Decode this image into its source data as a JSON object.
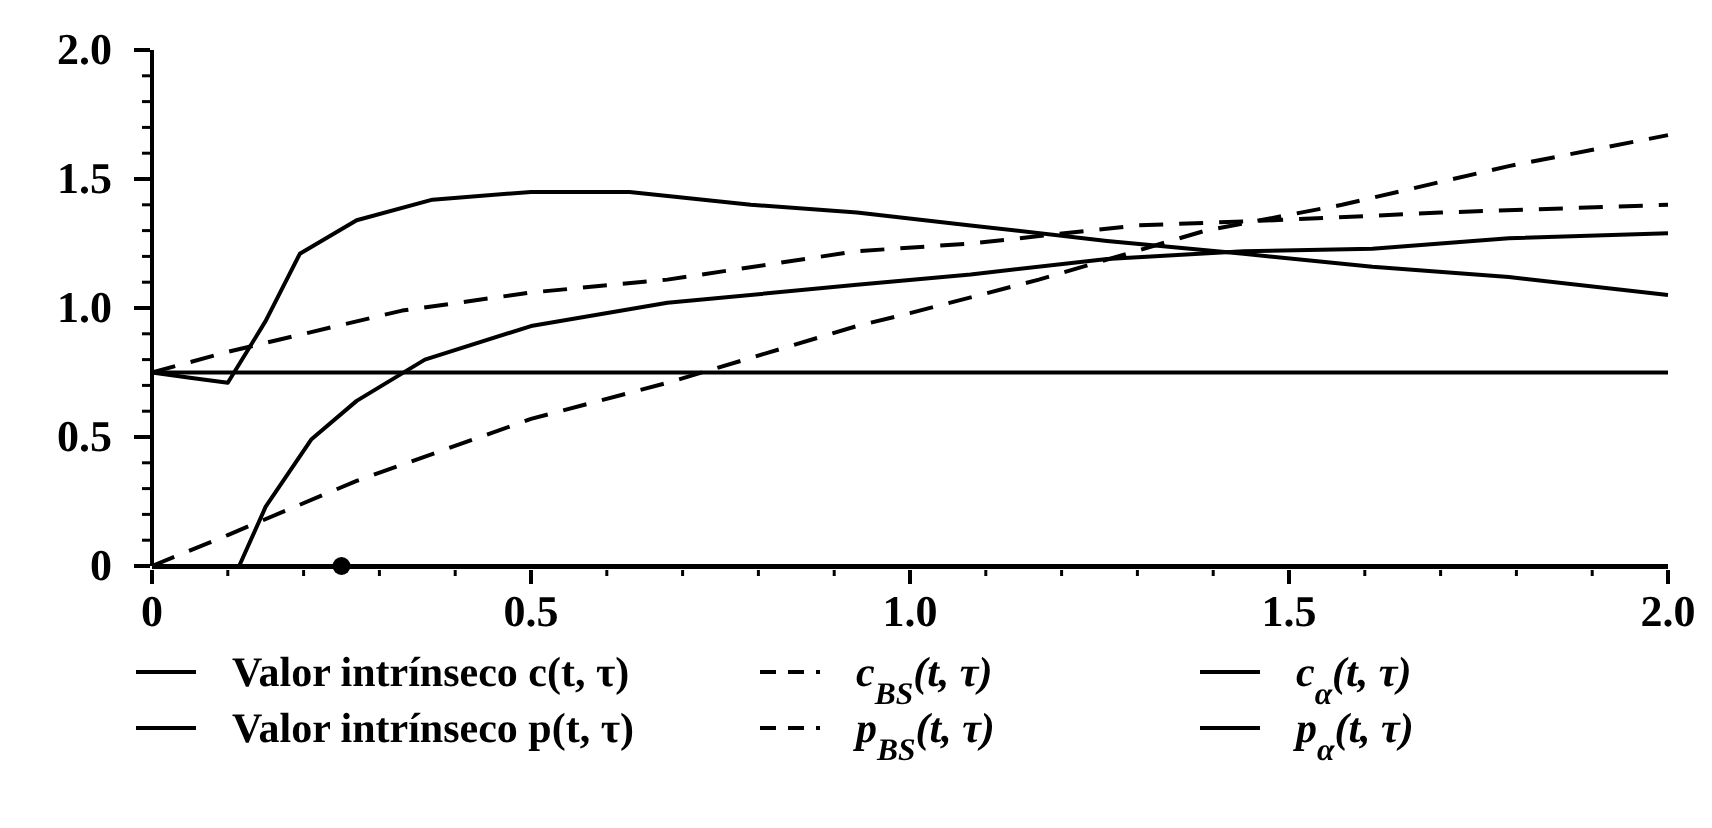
{
  "chart_data": {
    "type": "line",
    "xlim": [
      0,
      2
    ],
    "ylim": [
      0,
      2
    ],
    "xticks": [
      0,
      {
        "value": 0.1,
        "label": null
      },
      {
        "value": 0.2,
        "label": null
      },
      {
        "value": 0.3,
        "label": null
      },
      {
        "value": 0.4,
        "label": null
      },
      0.5,
      {
        "value": 0.6,
        "label": null
      },
      {
        "value": 0.7,
        "label": null
      },
      {
        "value": 0.8,
        "label": null
      },
      {
        "value": 0.9,
        "label": null
      },
      {
        "value": 1,
        "label": "1.0"
      },
      {
        "value": 1.1,
        "label": null
      },
      {
        "value": 1.2,
        "label": null
      },
      {
        "value": 1.3,
        "label": null
      },
      {
        "value": 1.4,
        "label": null
      },
      1.5,
      {
        "value": 1.6,
        "label": null
      },
      {
        "value": 1.7,
        "label": null
      },
      {
        "value": 1.8,
        "label": null
      },
      {
        "value": 1.9,
        "label": null
      },
      {
        "value": 2,
        "label": "2.0"
      }
    ],
    "yticks": [
      0,
      {
        "value": 0.1,
        "label": null
      },
      {
        "value": 0.2,
        "label": null
      },
      {
        "value": 0.3,
        "label": null
      },
      {
        "value": 0.4,
        "label": null
      },
      0.5,
      {
        "value": 0.6,
        "label": null
      },
      {
        "value": 0.7,
        "label": null
      },
      {
        "value": 0.8,
        "label": null
      },
      {
        "value": 0.9,
        "label": null
      },
      {
        "value": 1,
        "label": "1.0"
      },
      {
        "value": 1.1,
        "label": null
      },
      {
        "value": 1.2,
        "label": null
      },
      {
        "value": 1.3,
        "label": null
      },
      {
        "value": 1.4,
        "label": null
      },
      1.5,
      {
        "value": 1.6,
        "label": null
      },
      {
        "value": 1.7,
        "label": null
      },
      {
        "value": 1.8,
        "label": null
      },
      {
        "value": 1.9,
        "label": null
      },
      {
        "value": 2,
        "label": "2.0"
      }
    ],
    "grid": false,
    "legend": "bottom",
    "series": [
      {
        "name": "Valor intrínseco c(t, τ)",
        "color": "#000000",
        "line_style": "solid",
        "x": [
          0,
          2
        ],
        "values": [
          0,
          0
        ]
      },
      {
        "name": "c$_{BS}$(t, τ)",
        "color": "#000000",
        "line_style": "dashed",
        "x": [
          0,
          0.1,
          0.27,
          0.5,
          0.68,
          0.93,
          1.0,
          1.17,
          1.39,
          1.57,
          1.79,
          2.0
        ],
        "values": [
          0,
          0.12,
          0.33,
          0.57,
          0.71,
          0.93,
          0.98,
          1.11,
          1.3,
          1.4,
          1.55,
          1.67
        ]
      },
      {
        "name": "c$_{α}$(t, τ)",
        "color": "#000000",
        "line_style": "solid",
        "x": [
          0,
          0.1,
          0.115,
          0.15,
          0.21,
          0.27,
          0.36,
          0.5,
          0.68,
          0.93,
          1.08,
          1.26,
          1.44,
          1.61,
          1.79,
          2.0
        ],
        "values": [
          0,
          0,
          0,
          0.23,
          0.49,
          0.64,
          0.8,
          0.93,
          1.02,
          1.09,
          1.13,
          1.19,
          1.22,
          1.23,
          1.27,
          1.29
        ]
      },
      {
        "name": "Valor intrínseco p(t, τ)",
        "color": "#000000",
        "line_style": "solid",
        "x": [
          0,
          2
        ],
        "values": [
          0.75,
          0.75
        ]
      },
      {
        "name": "p$_{BS}$(t, τ)",
        "color": "#000000",
        "line_style": "dashed",
        "x": [
          0,
          0.1,
          0.33,
          0.5,
          0.68,
          0.93,
          1.08,
          1.3,
          1.48,
          1.7,
          2.0
        ],
        "values": [
          0.75,
          0.83,
          0.99,
          1.06,
          1.11,
          1.22,
          1.25,
          1.32,
          1.34,
          1.37,
          1.4
        ]
      },
      {
        "name": "p$_{α}$(t, τ)",
        "color": "#000000",
        "line_style": "solid",
        "x": [
          0,
          0.05,
          0.1,
          0.15,
          0.195,
          0.27,
          0.37,
          0.5,
          0.63,
          0.79,
          0.93,
          1.08,
          1.26,
          1.44,
          1.61,
          1.79,
          2.0
        ],
        "values": [
          0.75,
          0.73,
          0.71,
          0.95,
          1.21,
          1.34,
          1.42,
          1.45,
          1.45,
          1.4,
          1.37,
          1.32,
          1.26,
          1.21,
          1.16,
          1.12,
          1.05
        ]
      },
      {
        "type": "scatter",
        "marker": "circle",
        "color": "#000000",
        "x": [
          0.25
        ],
        "values": [
          0
        ]
      }
    ]
  }
}
